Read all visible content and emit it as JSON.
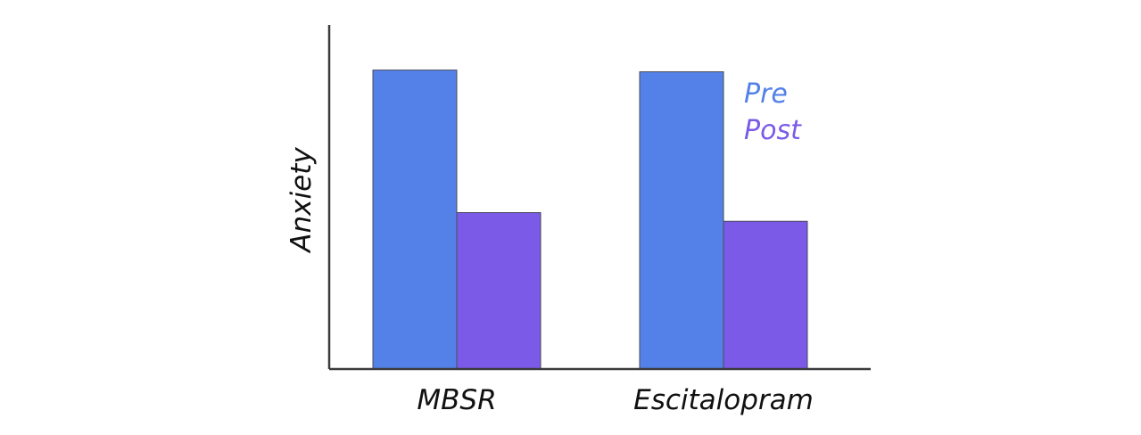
{
  "chart_data": {
    "type": "bar",
    "title": "",
    "xlabel": "",
    "ylabel": "Anxiety",
    "categories": [
      "MBSR",
      "Escitalopram"
    ],
    "series": [
      {
        "name": "Pre",
        "color": "#5381e8",
        "values": [
          8.6,
          8.55
        ]
      },
      {
        "name": "Post",
        "color": "#7b5ae8",
        "values": [
          4.5,
          4.25
        ]
      }
    ],
    "ylim": [
      0,
      10
    ],
    "grid": false,
    "y_tick_labels_shown": false,
    "legend_position": "top-right"
  }
}
